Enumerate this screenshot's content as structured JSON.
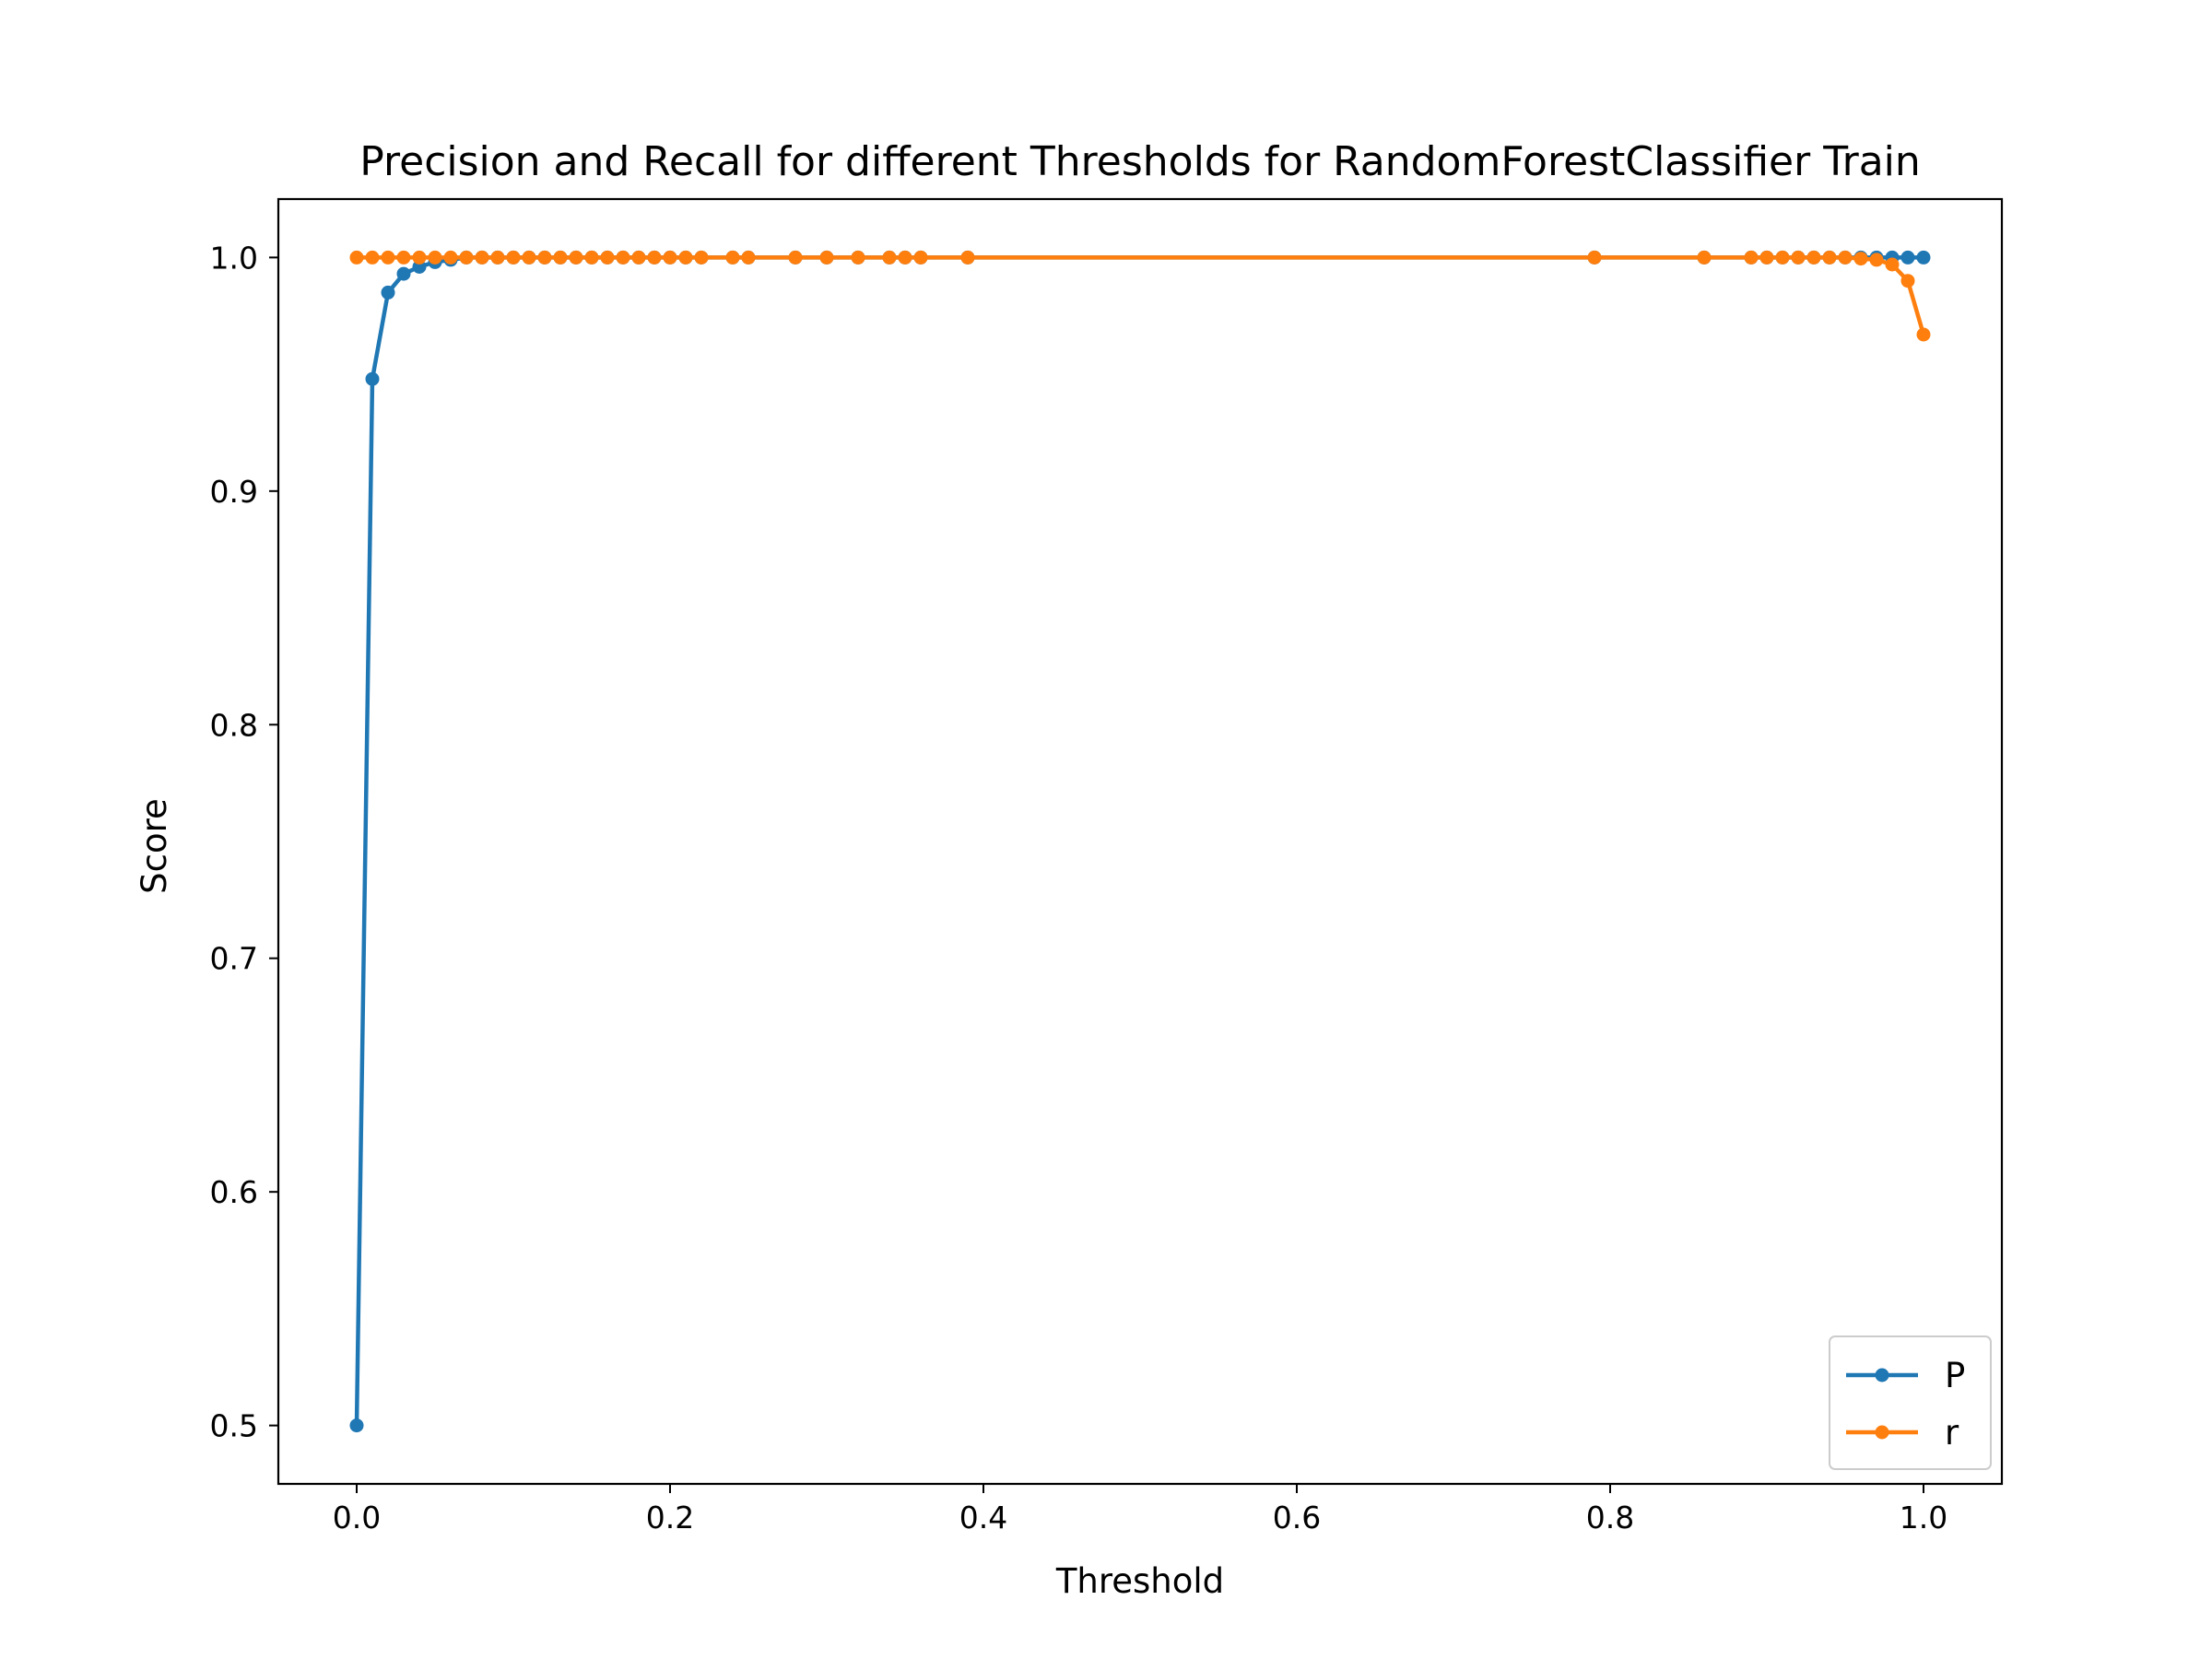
{
  "chart_data": {
    "type": "line",
    "title": "Precision and Recall for different Thresholds for RandomForestClassifier Train",
    "xlabel": "Threshold",
    "ylabel": "Score",
    "xlim": [
      -0.05,
      1.05
    ],
    "ylim": [
      0.475,
      1.025
    ],
    "xticks": [
      0.0,
      0.2,
      0.4,
      0.6,
      0.8,
      1.0
    ],
    "xtick_labels": [
      "0.0",
      "0.2",
      "0.4",
      "0.6",
      "0.8",
      "1.0"
    ],
    "yticks": [
      0.5,
      0.6,
      0.7,
      0.8,
      0.9,
      1.0
    ],
    "ytick_labels": [
      "0.5",
      "0.6",
      "0.7",
      "0.8",
      "0.9",
      "1.0"
    ],
    "grid": false,
    "legend_position": "lower-right",
    "series": [
      {
        "name": "P",
        "color": "#1f77b4",
        "x": [
          0.0,
          0.01,
          0.02,
          0.03,
          0.04,
          0.05,
          0.06,
          0.07,
          0.08,
          0.09,
          0.1,
          0.11,
          0.12,
          0.13,
          0.14,
          0.15,
          0.16,
          0.17,
          0.18,
          0.19,
          0.2,
          0.21,
          0.22,
          0.24,
          0.25,
          0.28,
          0.3,
          0.32,
          0.34,
          0.35,
          0.36,
          0.39,
          0.79,
          0.86,
          0.89,
          0.9,
          0.91,
          0.92,
          0.93,
          0.94,
          0.95,
          0.96,
          0.97,
          0.98,
          0.99,
          1.0
        ],
        "y": [
          0.5,
          0.948,
          0.985,
          0.993,
          0.996,
          0.998,
          0.999,
          1.0,
          1.0,
          1.0,
          1.0,
          1.0,
          1.0,
          1.0,
          1.0,
          1.0,
          1.0,
          1.0,
          1.0,
          1.0,
          1.0,
          1.0,
          1.0,
          1.0,
          1.0,
          1.0,
          1.0,
          1.0,
          1.0,
          1.0,
          1.0,
          1.0,
          1.0,
          1.0,
          1.0,
          1.0,
          1.0,
          1.0,
          1.0,
          1.0,
          1.0,
          1.0,
          1.0,
          1.0,
          1.0,
          1.0
        ]
      },
      {
        "name": "r",
        "color": "#ff7f0e",
        "x": [
          0.0,
          0.01,
          0.02,
          0.03,
          0.04,
          0.05,
          0.06,
          0.07,
          0.08,
          0.09,
          0.1,
          0.11,
          0.12,
          0.13,
          0.14,
          0.15,
          0.16,
          0.17,
          0.18,
          0.19,
          0.2,
          0.21,
          0.22,
          0.24,
          0.25,
          0.28,
          0.3,
          0.32,
          0.34,
          0.35,
          0.36,
          0.39,
          0.79,
          0.86,
          0.89,
          0.9,
          0.91,
          0.92,
          0.93,
          0.94,
          0.95,
          0.96,
          0.97,
          0.98,
          0.99,
          1.0
        ],
        "y": [
          1.0,
          1.0,
          1.0,
          1.0,
          1.0,
          1.0,
          1.0,
          1.0,
          1.0,
          1.0,
          1.0,
          1.0,
          1.0,
          1.0,
          1.0,
          1.0,
          1.0,
          1.0,
          1.0,
          1.0,
          1.0,
          1.0,
          1.0,
          1.0,
          1.0,
          1.0,
          1.0,
          1.0,
          1.0,
          1.0,
          1.0,
          1.0,
          1.0,
          1.0,
          1.0,
          1.0,
          1.0,
          1.0,
          1.0,
          1.0,
          1.0,
          0.9995,
          0.999,
          0.997,
          0.99,
          0.967
        ]
      }
    ]
  }
}
